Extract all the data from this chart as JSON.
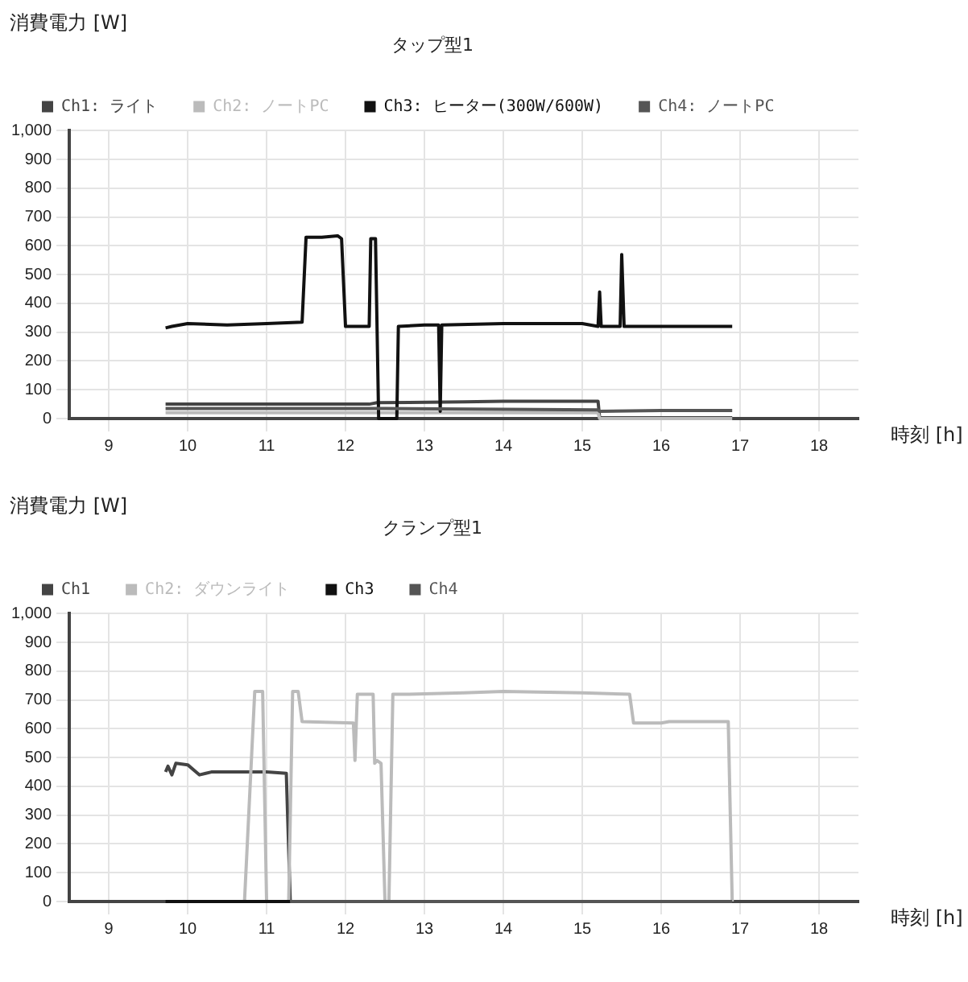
{
  "chart_data": [
    {
      "type": "line",
      "title": "タップ型1",
      "ylabel": "消費電力 [W]",
      "xlabel": "時刻 [h]",
      "xlim": [
        8.5,
        18.5
      ],
      "xticks": [
        9,
        10,
        11,
        12,
        13,
        14,
        15,
        16,
        17,
        18
      ],
      "ylim": [
        0,
        1000
      ],
      "yticks": [
        0,
        100,
        200,
        300,
        400,
        500,
        600,
        700,
        800,
        900,
        {
          "value": 1000,
          "label": "1,000"
        }
      ],
      "grid": true,
      "legend": "top",
      "marker": "none",
      "line_style": "solid",
      "series": [
        {
          "name": "Ch1: ライト",
          "color": "#444444",
          "x": [
            9.72,
            10.5,
            11.5,
            12.3,
            12.4,
            13.5,
            14,
            15.2,
            15.22,
            16.9
          ],
          "values": [
            50,
            50,
            50,
            50,
            55,
            58,
            60,
            60,
            3,
            3
          ]
        },
        {
          "name": "Ch2: ノートPC",
          "color": "#bbbbbb",
          "x": [
            9.72,
            10.5,
            12,
            13,
            14,
            15.2,
            15.22,
            16.9
          ],
          "values": [
            20,
            20,
            20,
            20,
            20,
            20,
            0,
            0
          ]
        },
        {
          "name": "Ch3: ヒーター(300W/600W)",
          "color": "#111111",
          "x": [
            9.72,
            9.8,
            10,
            10.5,
            11,
            11.45,
            11.5,
            11.7,
            11.9,
            11.95,
            12.0,
            12.3,
            12.32,
            12.38,
            12.42,
            12.65,
            12.67,
            13.0,
            13.18,
            13.2,
            13.22,
            14,
            15,
            15.2,
            15.22,
            15.24,
            15.48,
            15.5,
            15.53,
            16,
            16.9
          ],
          "values": [
            315,
            320,
            330,
            325,
            330,
            335,
            630,
            630,
            635,
            625,
            320,
            320,
            625,
            625,
            0,
            0,
            320,
            325,
            325,
            25,
            325,
            330,
            330,
            320,
            440,
            320,
            320,
            570,
            320,
            320,
            320
          ]
        },
        {
          "name": "Ch4: ノートPC",
          "color": "#555555",
          "x": [
            9.72,
            10.5,
            12,
            12.5,
            14,
            15.2,
            15.22,
            16,
            16.9
          ],
          "values": [
            35,
            35,
            35,
            35,
            32,
            30,
            25,
            28,
            28
          ]
        }
      ]
    },
    {
      "type": "line",
      "title": "クランプ型1",
      "ylabel": "消費電力 [W]",
      "xlabel": "時刻 [h]",
      "xlim": [
        8.5,
        18.5
      ],
      "xticks": [
        9,
        10,
        11,
        12,
        13,
        14,
        15,
        16,
        17,
        18
      ],
      "ylim": [
        0,
        1000
      ],
      "yticks": [
        0,
        100,
        200,
        300,
        400,
        500,
        600,
        700,
        800,
        900,
        {
          "value": 1000,
          "label": "1,000"
        }
      ],
      "grid": true,
      "legend": "top",
      "marker": "none",
      "line_style": "solid",
      "series": [
        {
          "name": "Ch1",
          "color": "#444444",
          "x": [
            9.72,
            9.75,
            9.8,
            9.85,
            10,
            10.15,
            10.3,
            11,
            11.25,
            11.3
          ],
          "values": [
            450,
            470,
            440,
            480,
            475,
            440,
            450,
            450,
            445,
            0
          ]
        },
        {
          "name": "Ch2: ダウンライト",
          "color": "#bbbbbb",
          "x": [
            10.72,
            10.85,
            10.95,
            11.0,
            11.28,
            11.33,
            11.4,
            11.45,
            12.1,
            12.12,
            12.15,
            12.35,
            12.37,
            12.4,
            12.45,
            12.5,
            12.55,
            12.6,
            12.8,
            13.5,
            14,
            15,
            15.6,
            15.65,
            16,
            16.1,
            16.85,
            16.9
          ],
          "values": [
            0,
            730,
            730,
            0,
            0,
            730,
            730,
            625,
            620,
            490,
            720,
            720,
            480,
            490,
            480,
            0,
            0,
            720,
            720,
            725,
            730,
            725,
            720,
            620,
            620,
            625,
            625,
            0
          ]
        },
        {
          "name": "Ch3",
          "color": "#111111",
          "x": [
            9.72,
            11.3
          ],
          "values": [
            0,
            0
          ]
        },
        {
          "name": "Ch4",
          "color": "#555555",
          "x": [
            11.3,
            16.9
          ],
          "values": [
            0,
            0
          ]
        }
      ]
    }
  ]
}
